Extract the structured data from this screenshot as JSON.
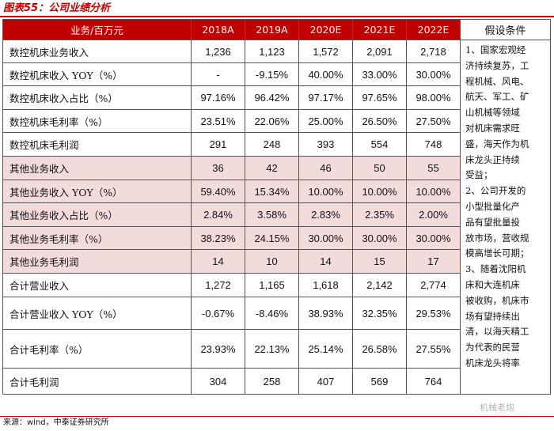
{
  "title": "图表55：公司业绩分析",
  "header": {
    "first": "业务/百万元",
    "years": [
      "2018A",
      "2019A",
      "2020E",
      "2021E",
      "2022E"
    ],
    "conditions": "假设条件"
  },
  "rows": [
    {
      "label": "数控机床业务收入",
      "values": [
        "1,236",
        "1,123",
        "1,572",
        "2,091",
        "2,718"
      ],
      "shade": false
    },
    {
      "label": "数控机床收入 YOY（%）",
      "values": [
        "-",
        "-9.15%",
        "40.00%",
        "33.00%",
        "30.00%"
      ],
      "shade": false
    },
    {
      "label": "数控机床收入占比（%）",
      "values": [
        "97.16%",
        "96.42%",
        "97.17%",
        "97.65%",
        "98.00%"
      ],
      "shade": false
    },
    {
      "label": "数控机床毛利率（%）",
      "values": [
        "23.51%",
        "22.06%",
        "25.00%",
        "26.50%",
        "27.50%"
      ],
      "shade": false
    },
    {
      "label": "数控机床毛利润",
      "values": [
        "291",
        "248",
        "393",
        "554",
        "748"
      ],
      "shade": false
    },
    {
      "label": "其他业务收入",
      "values": [
        "36",
        "42",
        "46",
        "50",
        "55"
      ],
      "shade": true
    },
    {
      "label": "其他业务收入 YOY（%）",
      "values": [
        "59.40%",
        "15.34%",
        "10.00%",
        "10.00%",
        "10.00%"
      ],
      "shade": true
    },
    {
      "label": "其他业务收入占比（%）",
      "values": [
        "2.84%",
        "3.58%",
        "2.83%",
        "2.35%",
        "2.00%"
      ],
      "shade": true
    },
    {
      "label": "其他业务毛利率（%）",
      "values": [
        "38.23%",
        "24.15%",
        "30.00%",
        "30.00%",
        "30.00%"
      ],
      "shade": true
    },
    {
      "label": "其他业务毛利润",
      "values": [
        "14",
        "10",
        "14",
        "15",
        "17"
      ],
      "shade": true
    },
    {
      "label": "合计营业收入",
      "values": [
        "1,272",
        "1,165",
        "1,618",
        "2,142",
        "2,774"
      ],
      "shade": false
    },
    {
      "label": "合计营业收入 YOY（%）",
      "values": [
        "-0.67%",
        "-8.46%",
        "38.93%",
        "32.35%",
        "29.53%"
      ],
      "shade": false
    },
    {
      "label": "合计毛利率（%）",
      "values": [
        "23.93%",
        "22.13%",
        "25.14%",
        "26.58%",
        "27.55%"
      ],
      "shade": false
    },
    {
      "label": "合计毛利润",
      "values": [
        "304",
        "258",
        "407",
        "569",
        "764"
      ],
      "shade": false
    }
  ],
  "conditions_lines": [
    "1、国家宏观经",
    "济持续复苏，工",
    "程机械、风电、",
    "航天、军工、矿",
    "山机械等领域",
    "对机床需求旺",
    "盛，海天作为机",
    "床龙头正持续",
    "受益；",
    "2、公司开发的",
    "小型批量化产",
    "品有望批量投",
    "放市场，营收规",
    "模高增长可期；",
    "3、随着沈阳机",
    "床和大连机床",
    "被收购，机床市",
    "场有望持续出",
    "清，以海天精工",
    "为代表的民营",
    "机床龙头将率"
  ],
  "source": "来源：wind，中泰证券研究所",
  "watermark": "机械老炮",
  "colors": {
    "accent": "#c00000",
    "shade": "#f2dcdb"
  }
}
